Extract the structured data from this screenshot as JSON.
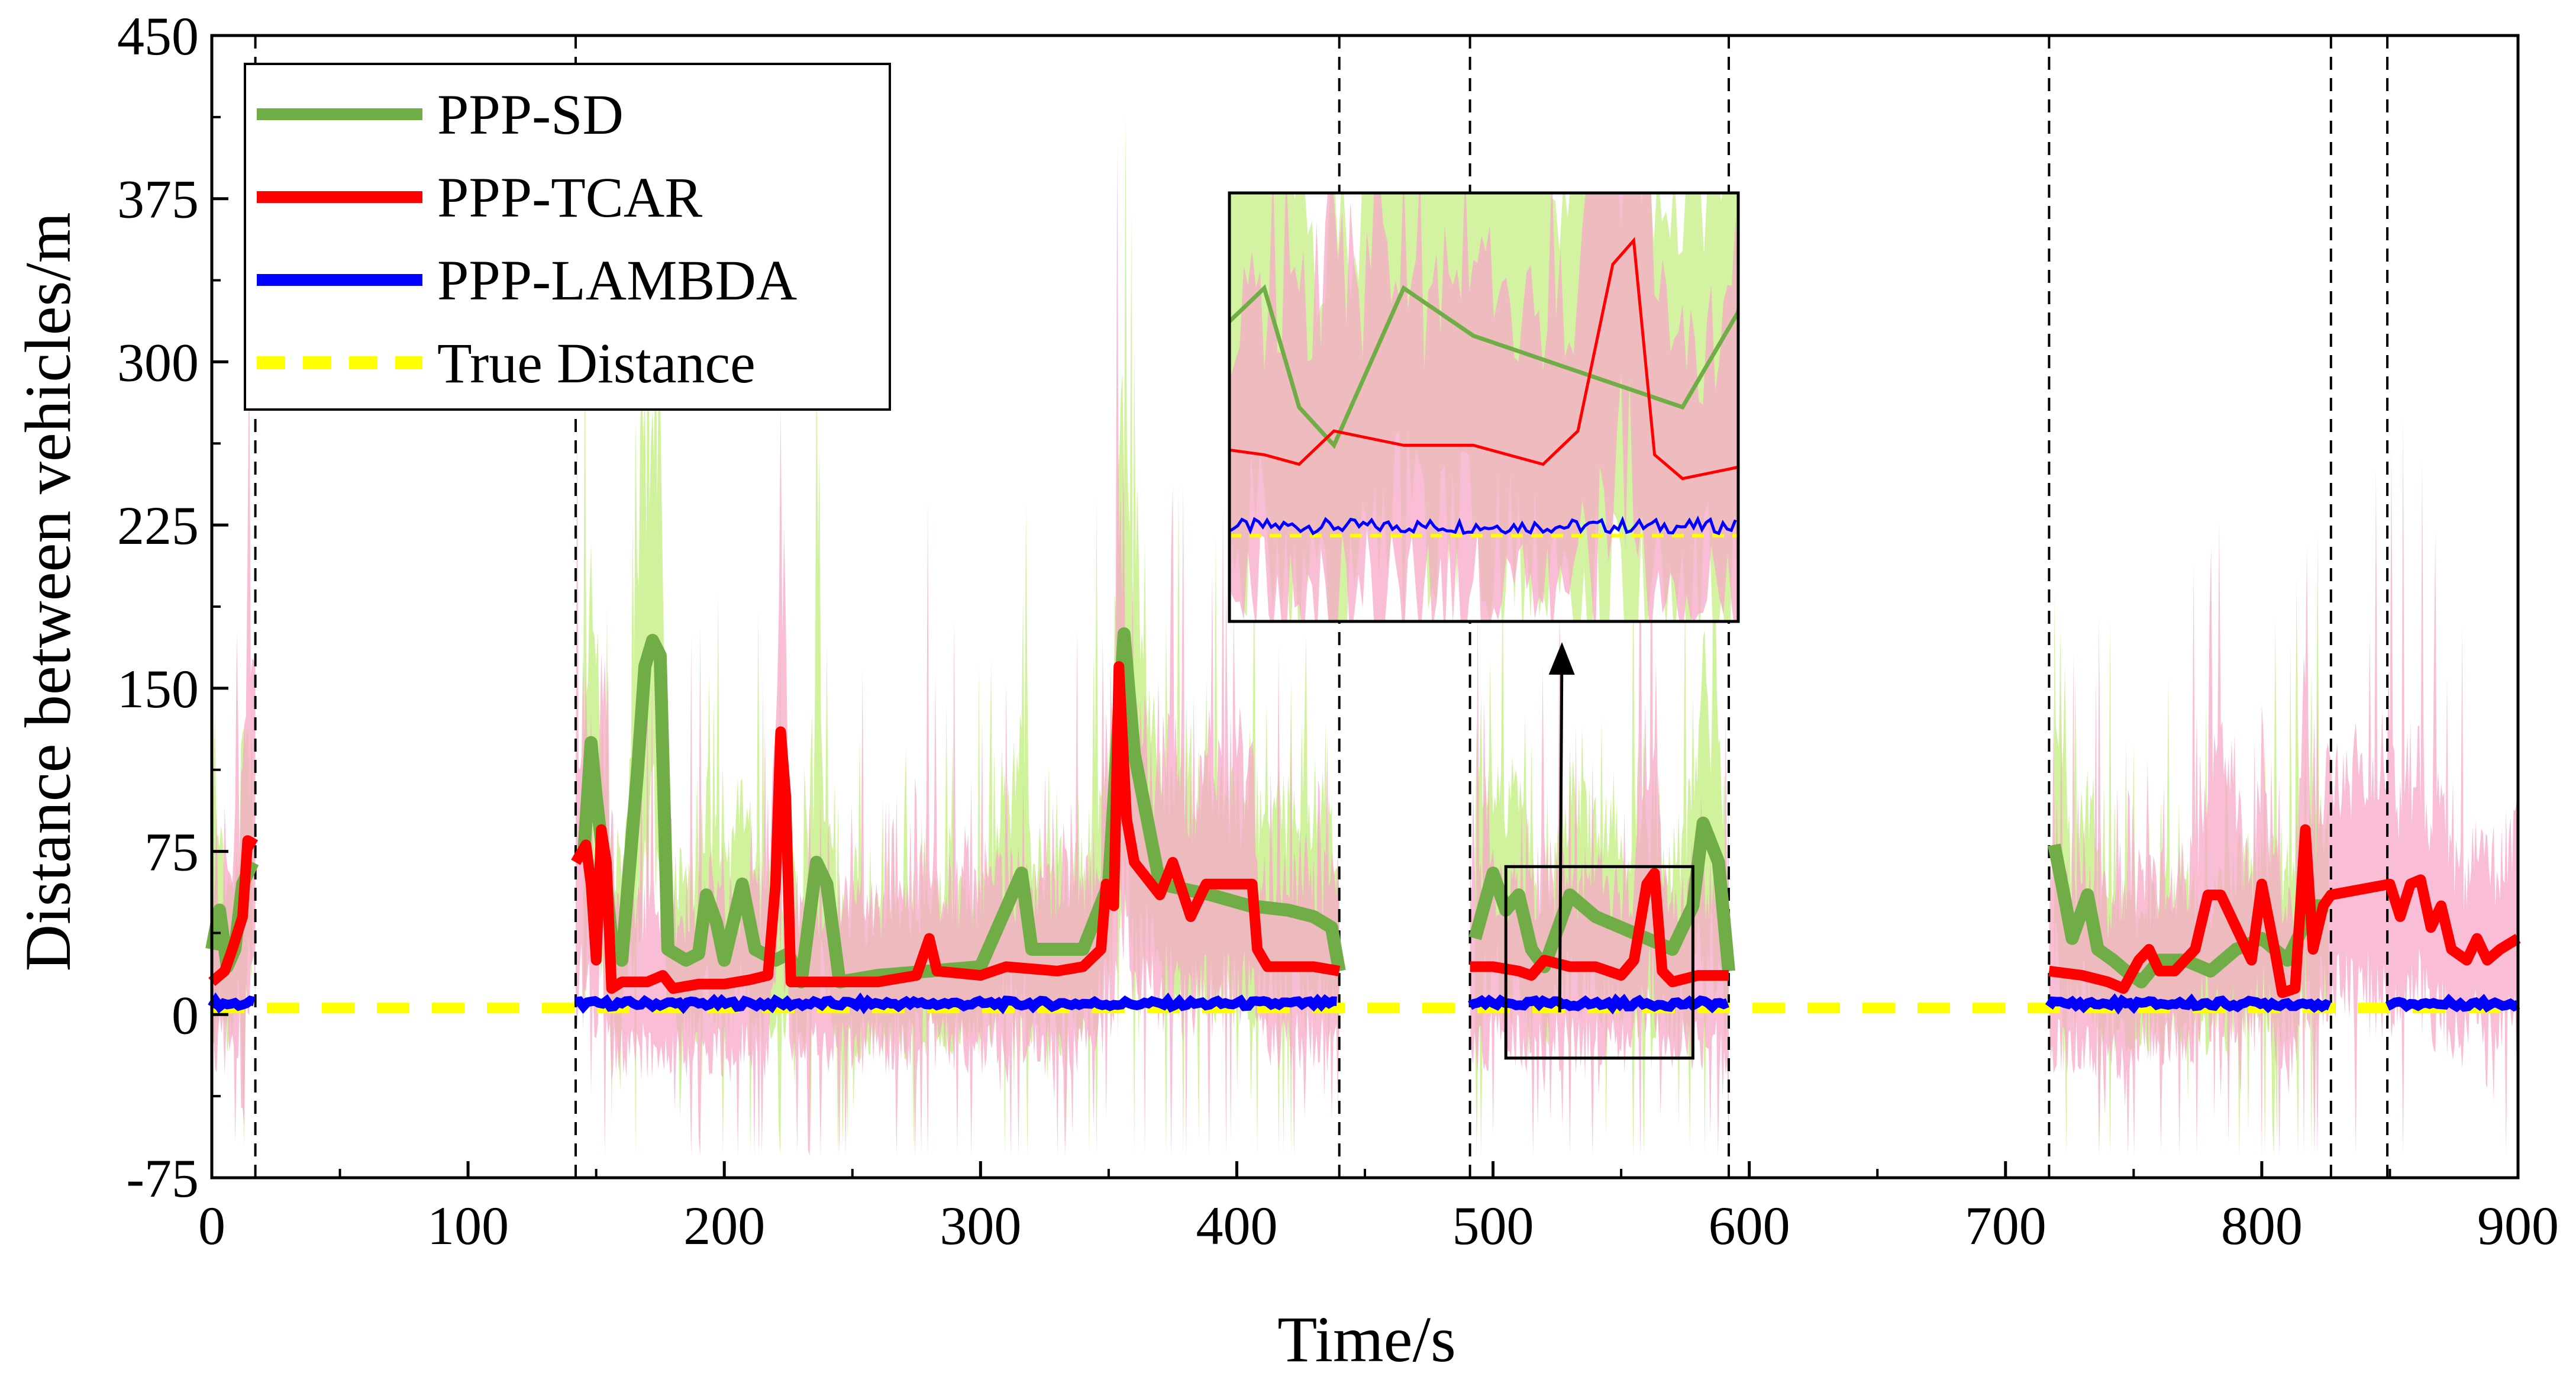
{
  "chart_data": {
    "type": "line",
    "title": "",
    "xlabel": "Time/s",
    "ylabel": "Distance between vehicles/m",
    "xlim": [
      0,
      900
    ],
    "ylim": [
      -75,
      450
    ],
    "xticks": [
      "0",
      "100",
      "200",
      "300",
      "400",
      "500",
      "600",
      "700",
      "800",
      "900"
    ],
    "yticks": [
      "-75",
      "0",
      "75",
      "150",
      "225",
      "300",
      "375",
      "450"
    ],
    "legend_position": "top-left",
    "grid": false,
    "segment_boundaries": [
      17,
      142,
      440,
      491,
      592,
      717,
      827,
      849
    ],
    "colors": {
      "sd": "#70ad47",
      "sd_band": "#c8f08c",
      "tcar": "#ff0000",
      "tcar_band": "#f7a8c8",
      "lambda": "#0000ff",
      "truth": "#ffff00"
    },
    "series": [
      {
        "name": "PPP-SD",
        "key": "sd",
        "points": [
          [
            0,
            30
          ],
          [
            3,
            48
          ],
          [
            6,
            22
          ],
          [
            9,
            30
          ],
          [
            12,
            60
          ],
          [
            16,
            70
          ],
          [
            145,
            70
          ],
          [
            148,
            125
          ],
          [
            150,
            100
          ],
          [
            153,
            70
          ],
          [
            156,
            35
          ],
          [
            160,
            25
          ],
          [
            166,
            110
          ],
          [
            169,
            160
          ],
          [
            172,
            172
          ],
          [
            175,
            165
          ],
          [
            178,
            30
          ],
          [
            185,
            25
          ],
          [
            190,
            28
          ],
          [
            193,
            55
          ],
          [
            197,
            42
          ],
          [
            200,
            25
          ],
          [
            207,
            60
          ],
          [
            212,
            30
          ],
          [
            220,
            25
          ],
          [
            225,
            28
          ],
          [
            230,
            15
          ],
          [
            236,
            70
          ],
          [
            240,
            60
          ],
          [
            245,
            15
          ],
          [
            260,
            18
          ],
          [
            280,
            20
          ],
          [
            300,
            22
          ],
          [
            316,
            65
          ],
          [
            320,
            30
          ],
          [
            340,
            30
          ],
          [
            350,
            60
          ],
          [
            356,
            175
          ],
          [
            360,
            120
          ],
          [
            370,
            60
          ],
          [
            390,
            55
          ],
          [
            405,
            50
          ],
          [
            420,
            48
          ],
          [
            430,
            45
          ],
          [
            437,
            40
          ],
          [
            440,
            20
          ],
          [
            493,
            35
          ],
          [
            500,
            65
          ],
          [
            505,
            48
          ],
          [
            510,
            55
          ],
          [
            515,
            30
          ],
          [
            520,
            22
          ],
          [
            530,
            55
          ],
          [
            540,
            45
          ],
          [
            550,
            40
          ],
          [
            560,
            35
          ],
          [
            570,
            30
          ],
          [
            578,
            50
          ],
          [
            582,
            88
          ],
          [
            588,
            70
          ],
          [
            592,
            20
          ],
          [
            719,
            78
          ],
          [
            722,
            60
          ],
          [
            726,
            35
          ],
          [
            732,
            55
          ],
          [
            736,
            30
          ],
          [
            742,
            25
          ],
          [
            747,
            20
          ],
          [
            753,
            15
          ],
          [
            760,
            25
          ],
          [
            770,
            25
          ],
          [
            780,
            20
          ],
          [
            790,
            30
          ],
          [
            800,
            35
          ],
          [
            810,
            25
          ],
          [
            820,
            50
          ],
          [
            826,
            50
          ]
        ]
      },
      {
        "name": "PPP-TCAR",
        "key": "tcar",
        "points": [
          [
            0,
            15
          ],
          [
            5,
            20
          ],
          [
            8,
            30
          ],
          [
            12,
            45
          ],
          [
            14,
            80
          ],
          [
            17,
            78
          ],
          [
            142,
            70
          ],
          [
            146,
            78
          ],
          [
            148,
            60
          ],
          [
            150,
            25
          ],
          [
            152,
            85
          ],
          [
            154,
            70
          ],
          [
            156,
            12
          ],
          [
            160,
            15
          ],
          [
            170,
            15
          ],
          [
            176,
            18
          ],
          [
            180,
            12
          ],
          [
            190,
            14
          ],
          [
            200,
            14
          ],
          [
            210,
            16
          ],
          [
            217,
            18
          ],
          [
            220,
            60
          ],
          [
            222,
            130
          ],
          [
            224,
            100
          ],
          [
            226,
            15
          ],
          [
            240,
            15
          ],
          [
            260,
            15
          ],
          [
            275,
            18
          ],
          [
            280,
            35
          ],
          [
            283,
            20
          ],
          [
            300,
            18
          ],
          [
            310,
            22
          ],
          [
            330,
            20
          ],
          [
            340,
            22
          ],
          [
            347,
            30
          ],
          [
            349,
            60
          ],
          [
            352,
            50
          ],
          [
            354,
            160
          ],
          [
            357,
            90
          ],
          [
            360,
            70
          ],
          [
            370,
            55
          ],
          [
            375,
            70
          ],
          [
            382,
            45
          ],
          [
            388,
            60
          ],
          [
            400,
            60
          ],
          [
            406,
            60
          ],
          [
            408,
            30
          ],
          [
            412,
            22
          ],
          [
            420,
            22
          ],
          [
            430,
            22
          ],
          [
            440,
            20
          ],
          [
            491,
            22
          ],
          [
            500,
            22
          ],
          [
            510,
            20
          ],
          [
            515,
            18
          ],
          [
            520,
            25
          ],
          [
            530,
            22
          ],
          [
            540,
            22
          ],
          [
            550,
            18
          ],
          [
            555,
            25
          ],
          [
            560,
            60
          ],
          [
            563,
            65
          ],
          [
            566,
            20
          ],
          [
            570,
            15
          ],
          [
            580,
            18
          ],
          [
            592,
            18
          ],
          [
            717,
            20
          ],
          [
            730,
            18
          ],
          [
            740,
            15
          ],
          [
            746,
            12
          ],
          [
            752,
            25
          ],
          [
            756,
            30
          ],
          [
            760,
            20
          ],
          [
            766,
            20
          ],
          [
            774,
            30
          ],
          [
            779,
            55
          ],
          [
            784,
            55
          ],
          [
            790,
            40
          ],
          [
            796,
            25
          ],
          [
            800,
            60
          ],
          [
            805,
            30
          ],
          [
            808,
            10
          ],
          [
            813,
            12
          ],
          [
            817,
            85
          ],
          [
            820,
            30
          ],
          [
            824,
            50
          ],
          [
            827,
            55
          ],
          [
            850,
            60
          ],
          [
            854,
            45
          ],
          [
            858,
            60
          ],
          [
            862,
            62
          ],
          [
            866,
            40
          ],
          [
            870,
            50
          ],
          [
            874,
            30
          ],
          [
            880,
            25
          ],
          [
            884,
            35
          ],
          [
            888,
            25
          ],
          [
            893,
            30
          ],
          [
            900,
            35
          ]
        ]
      },
      {
        "name": "PPP-LAMBDA",
        "key": "lambda",
        "segments": [
          [
            0,
            17
          ],
          [
            142,
            440
          ],
          [
            491,
            592
          ],
          [
            717,
            827
          ],
          [
            849,
            900
          ]
        ],
        "value": 5
      },
      {
        "name": "True Distance",
        "key": "truth",
        "range": [
          0,
          900
        ],
        "value": 3
      }
    ],
    "inset": {
      "source_box": {
        "x": [
          505,
          578
        ],
        "y": [
          -20,
          68
        ]
      },
      "arrow_to": [
        526,
        1
      ]
    }
  }
}
